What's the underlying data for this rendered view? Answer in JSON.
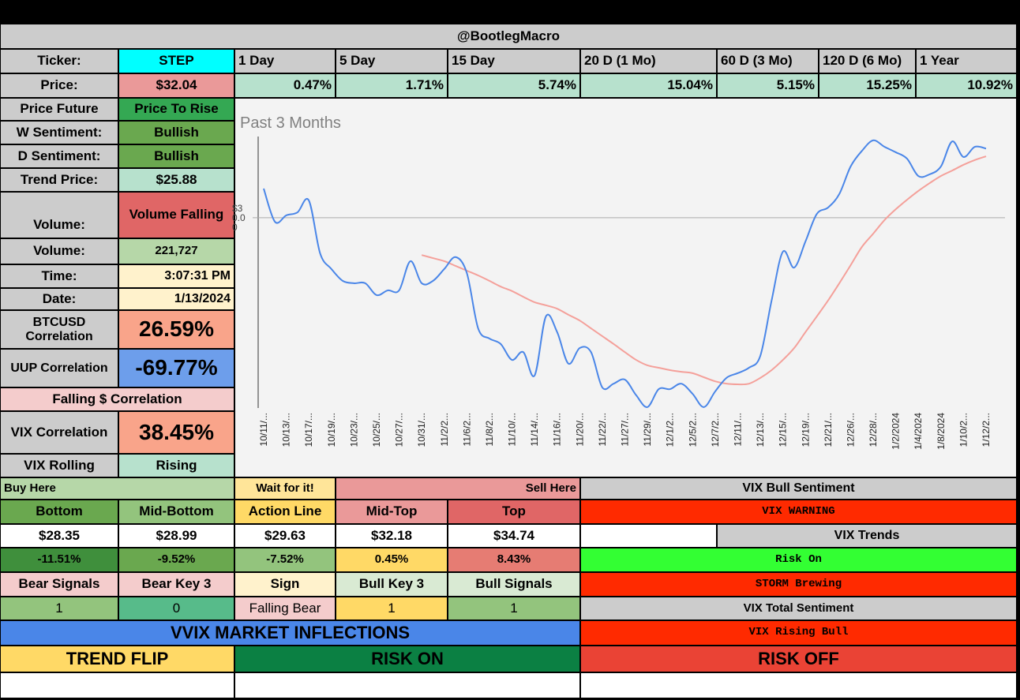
{
  "header": {
    "title": "@BootlegMacro"
  },
  "ticker_row": {
    "label": "Ticker:",
    "ticker": "STEP",
    "periods": [
      "1 Day",
      "5 Day",
      "15 Day",
      "20 D (1 Mo)",
      "60 D (3 Mo)",
      "120 D (6 Mo)",
      "1 Year"
    ]
  },
  "price_row": {
    "label": "Price:",
    "price": "$32.04",
    "changes": [
      "0.47%",
      "1.71%",
      "5.74%",
      "15.04%",
      "5.15%",
      "15.25%",
      "10.92%"
    ]
  },
  "side_panel": [
    {
      "label": "Price Future",
      "value": "Price To Rise"
    },
    {
      "label": "W Sentiment:",
      "value": "Bullish"
    },
    {
      "label": "D Sentiment:",
      "value": "Bullish"
    },
    {
      "label": "Trend Price:",
      "value": "$25.88"
    },
    {
      "label": "Volume:",
      "value": "Volume Falling"
    },
    {
      "label": "Volume:",
      "value": "221,727"
    },
    {
      "label": "Time:",
      "value": "3:07:31 PM"
    },
    {
      "label": "Date:",
      "value": "1/13/2024"
    },
    {
      "label": "BTCUSD Correlation",
      "value": "26.59%"
    },
    {
      "label": "UUP Correlation",
      "value": "-69.77%"
    },
    {
      "label": "Falling $ Correlation"
    },
    {
      "label": "VIX Correlation",
      "value": "38.45%"
    },
    {
      "label": "VIX Rolling",
      "value": "Rising"
    }
  ],
  "zones": {
    "buy": "Buy Here",
    "wait": "Wait for it!",
    "sell": "Sell Here"
  },
  "levels": {
    "headers": [
      "Bottom",
      "Mid-Bottom",
      "Action Line",
      "Mid-Top",
      "Top"
    ],
    "prices": [
      "$28.35",
      "$28.99",
      "$29.63",
      "$32.18",
      "$34.74"
    ],
    "changes": [
      "-11.51%",
      "-9.52%",
      "-7.52%",
      "0.45%",
      "8.43%"
    ]
  },
  "signals": {
    "headers": [
      "Bear Signals",
      "Bear Key 3",
      "Sign",
      "Bull Key 3",
      "Bull Signals"
    ],
    "values": [
      "1",
      "0",
      "Falling Bear",
      "1",
      "1"
    ]
  },
  "vix": {
    "bull_sentiment_title": "VIX Bull Sentiment",
    "warning": "VIX WARNING",
    "trends_title": "VIX Trends",
    "risk": "Risk On",
    "storm": "STORM Brewing",
    "total_title": "VIX Total Sentiment",
    "total": "VIX Rising Bull"
  },
  "inflections": {
    "title": "VVIX MARKET INFLECTIONS",
    "states": [
      "TREND FLIP",
      "RISK ON",
      "RISK OFF"
    ]
  },
  "chart_data": {
    "type": "line",
    "title": "Past 3 Months",
    "categories": [
      "10/11/...",
      null,
      "10/13/...",
      null,
      "10/17/...",
      null,
      "10/19/...",
      null,
      "10/23/...",
      null,
      "10/25/...",
      null,
      "10/27/...",
      null,
      "10/31/...",
      null,
      "11/2/2...",
      null,
      "11/6/2...",
      null,
      "11/8/2...",
      null,
      "11/10/...",
      null,
      "11/14/...",
      null,
      "11/16/...",
      null,
      "11/20/...",
      null,
      "11/22/...",
      null,
      "11/27/...",
      null,
      "11/29/...",
      null,
      "12/1/2...",
      null,
      "12/5/2...",
      null,
      "12/7/2...",
      null,
      "12/11/...",
      null,
      "12/13/...",
      null,
      "12/15/...",
      null,
      "12/19/...",
      null,
      "12/21/...",
      null,
      "12/26/...",
      null,
      "12/28/...",
      null,
      "1/2/2024",
      null,
      "1/4/2024",
      null,
      "1/8/2024",
      null,
      "1/10/2...",
      null,
      "1/12/2..."
    ],
    "series": [
      {
        "name": "Price",
        "color": "#4a86e8",
        "values": [
          30.86,
          29.88,
          30.07,
          30.16,
          30.51,
          28.95,
          28.49,
          28.14,
          28.07,
          28.07,
          27.72,
          27.86,
          27.86,
          28.72,
          28.07,
          28.14,
          28.49,
          28.84,
          28.37,
          26.74,
          26.44,
          26.28,
          25.81,
          26.04,
          25.35,
          27.09,
          26.63,
          25.7,
          26.16,
          26.04,
          25.0,
          25.11,
          25.23,
          24.77,
          24.42,
          24.95,
          24.95,
          25.11,
          24.81,
          24.42,
          24.88,
          25.28,
          25.42,
          25.58,
          25.93,
          27.56,
          29.0,
          28.53,
          29.3,
          30.11,
          30.3,
          30.7,
          31.51,
          31.97,
          32.28,
          32.09,
          31.93,
          31.74,
          31.23,
          31.28,
          31.51,
          32.25,
          31.79,
          32.09,
          32.04
        ]
      },
      {
        "name": "Moving Average",
        "color": "#f4a09a",
        "values": [
          null,
          null,
          null,
          null,
          null,
          null,
          null,
          null,
          null,
          null,
          null,
          null,
          null,
          null,
          28.9,
          28.81,
          28.72,
          28.58,
          28.44,
          28.3,
          28.14,
          27.97,
          27.84,
          27.67,
          27.51,
          27.42,
          27.32,
          27.14,
          26.97,
          26.74,
          26.51,
          26.28,
          26.04,
          25.81,
          25.65,
          25.58,
          25.51,
          25.46,
          25.42,
          25.3,
          25.18,
          25.11,
          25.09,
          25.11,
          25.28,
          25.51,
          25.81,
          26.16,
          26.63,
          27.09,
          27.56,
          28.07,
          28.6,
          29.14,
          29.53,
          29.93,
          30.25,
          30.53,
          30.79,
          31.02,
          31.23,
          31.39,
          31.56,
          31.7,
          31.81
        ]
      }
    ],
    "ylim": [
      24.3,
      32.44
    ],
    "yticks": [
      {
        "value": 30,
        "label": "$3\n0.0\n0"
      }
    ],
    "grid": true
  }
}
